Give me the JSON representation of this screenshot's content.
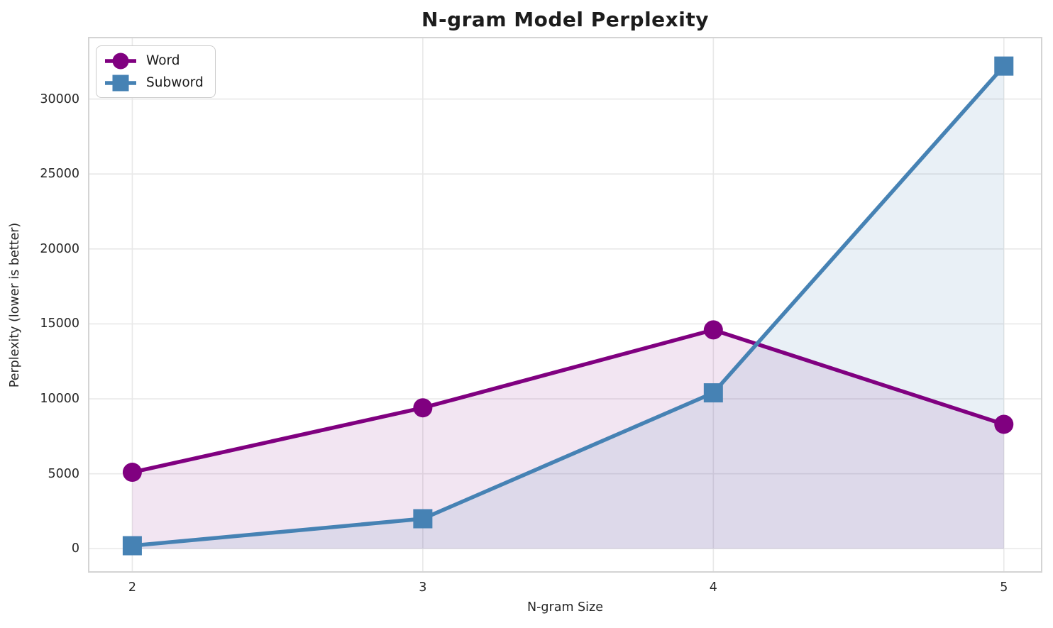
{
  "chart_data": {
    "type": "line",
    "title": "N-gram Model Perplexity",
    "xlabel": "N-gram Size",
    "ylabel": "Perplexity (lower is better)",
    "x": [
      2,
      3,
      4,
      5
    ],
    "series": [
      {
        "name": "Word",
        "values": [
          5100,
          9400,
          14600,
          8300
        ],
        "color": "#800080",
        "fill_color": "rgba(128,0,128,0.10)",
        "marker": "circle"
      },
      {
        "name": "Subword",
        "values": [
          200,
          2000,
          10400,
          32200
        ],
        "color": "#4682b4",
        "fill_color": "rgba(70,130,180,0.12)",
        "marker": "square"
      }
    ],
    "xticks": [
      2,
      3,
      4,
      5
    ],
    "yticks": [
      0,
      5000,
      10000,
      15000,
      20000,
      25000,
      30000
    ],
    "xlim": [
      1.85,
      5.13
    ],
    "ylim": [
      -1550,
      34100
    ],
    "fill_to": 0,
    "grid": true,
    "legend_position": "upper-left",
    "grid_color": "#e8e8e8",
    "frame_color": "#d4d4d4",
    "background_color": "#ffffff"
  }
}
